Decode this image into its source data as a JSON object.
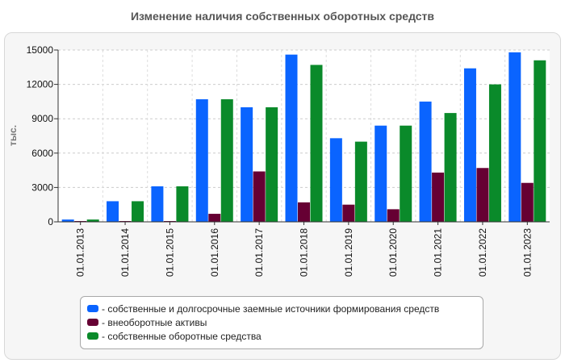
{
  "chart_data": {
    "type": "bar",
    "title": "Изменение наличия собственных оборотных средств",
    "ylabel": "тыс.",
    "xlabel": "",
    "ylim": [
      0,
      15000
    ],
    "yticks": [
      "0",
      "3000",
      "6000",
      "9000",
      "12000",
      "15000"
    ],
    "grid": true,
    "legend_position": "bottom",
    "categories": [
      "01.01.2013",
      "01.01.2014",
      "01.01.2015",
      "01.01.2016",
      "01.01.2017",
      "01.01.2018",
      "01.01.2019",
      "01.01.2020",
      "01.01.2021",
      "01.01.2022",
      "01.01.2023"
    ],
    "series": [
      {
        "name": "- собственные и долгосрочные заемные источники формирования средств",
        "color": "#0a64ff",
        "values": [
          200,
          1800,
          3100,
          10700,
          10000,
          14600,
          7300,
          8400,
          10500,
          13400,
          14800
        ]
      },
      {
        "name": "- внеоборотные активы",
        "color": "#660033",
        "values": [
          50,
          50,
          50,
          700,
          4400,
          1700,
          1500,
          1100,
          4300,
          4700,
          3400
        ]
      },
      {
        "name": "- собственные оборотные средства",
        "color": "#0a8a2a",
        "values": [
          200,
          1800,
          3100,
          10700,
          10000,
          13700,
          7000,
          8400,
          9500,
          12000,
          14100
        ]
      }
    ]
  }
}
